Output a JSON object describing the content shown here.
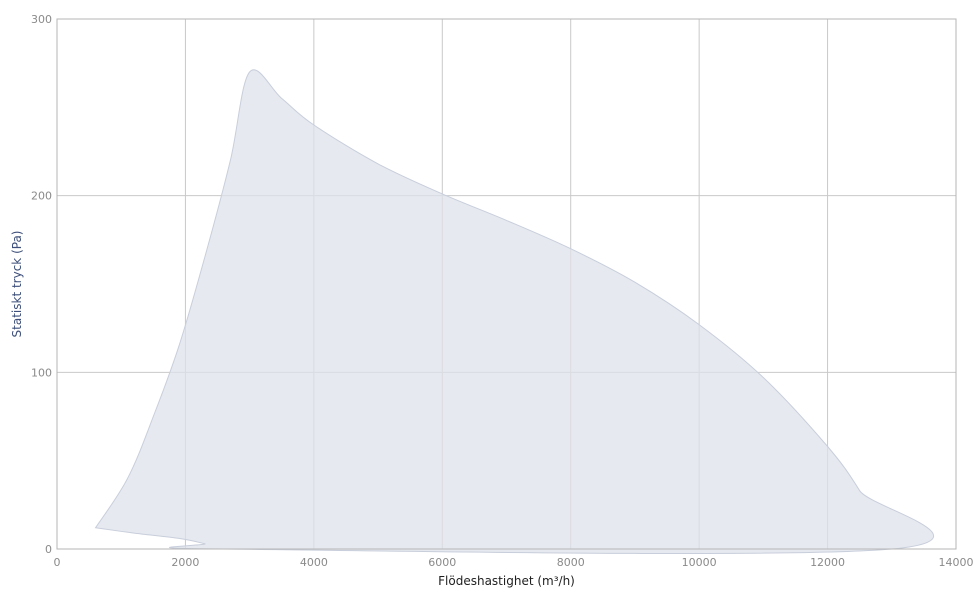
{
  "chart_data": {
    "type": "area",
    "xlabel": "Flödeshastighet (m³/h)",
    "ylabel": "Statiskt tryck (Pa)",
    "xlim": [
      0,
      14000
    ],
    "ylim": [
      0,
      300
    ],
    "xticks": [
      0,
      2000,
      4000,
      6000,
      8000,
      10000,
      12000,
      14000
    ],
    "yticks": [
      0,
      100,
      200,
      300
    ],
    "grid": true,
    "fill_color": "#dde1ea",
    "fill_stroke": "#c8cedb",
    "series": [
      {
        "outline": [
          {
            "x": 600,
            "y": 12
          },
          {
            "x": 1100,
            "y": 40
          },
          {
            "x": 1500,
            "y": 75
          },
          {
            "x": 1900,
            "y": 115
          },
          {
            "x": 2300,
            "y": 165
          },
          {
            "x": 2700,
            "y": 220
          },
          {
            "x": 3000,
            "y": 270
          },
          {
            "x": 3500,
            "y": 255
          },
          {
            "x": 4000,
            "y": 240
          },
          {
            "x": 5000,
            "y": 218
          },
          {
            "x": 6000,
            "y": 201
          },
          {
            "x": 7000,
            "y": 186
          },
          {
            "x": 8000,
            "y": 170
          },
          {
            "x": 9000,
            "y": 151
          },
          {
            "x": 10000,
            "y": 127
          },
          {
            "x": 11000,
            "y": 97
          },
          {
            "x": 12000,
            "y": 58
          },
          {
            "x": 12500,
            "y": 33
          },
          {
            "x": 13000,
            "y": 0
          },
          {
            "x": 2600,
            "y": 0
          },
          {
            "x": 2300,
            "y": 3
          },
          {
            "x": 1900,
            "y": 6
          },
          {
            "x": 1200,
            "y": 9
          },
          {
            "x": 600,
            "y": 12
          }
        ]
      }
    ]
  }
}
